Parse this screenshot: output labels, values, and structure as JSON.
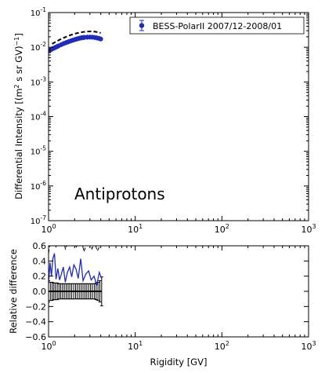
{
  "chart_data": [
    {
      "type": "scatter",
      "title": "",
      "annotation": "Antiprotons",
      "xlabel": "",
      "ylabel": "Differential Intensity [(m² s sr GV)⁻¹]",
      "ylabel_main": "Differential Intensity [(m",
      "ylabel_sup1": "2",
      "ylabel_mid": " s sr GV)",
      "ylabel_sup2": "−1",
      "ylabel_end": "]",
      "x_scale": "log",
      "y_scale": "log",
      "xlim": [
        1,
        1000
      ],
      "ylim": [
        1e-07,
        0.1
      ],
      "x_ticks": [
        {
          "value": 1,
          "base": "10",
          "exp": "0"
        },
        {
          "value": 10,
          "base": "10",
          "exp": "1"
        },
        {
          "value": 100,
          "base": "10",
          "exp": "2"
        },
        {
          "value": 1000,
          "base": "10",
          "exp": "3"
        }
      ],
      "y_ticks": [
        {
          "value": 1e-07,
          "base": "10",
          "exp": "-7"
        },
        {
          "value": 1e-06,
          "base": "10",
          "exp": "-6"
        },
        {
          "value": 1e-05,
          "base": "10",
          "exp": "-5"
        },
        {
          "value": 0.0001,
          "base": "10",
          "exp": "-4"
        },
        {
          "value": 0.001,
          "base": "10",
          "exp": "-3"
        },
        {
          "value": 0.01,
          "base": "10",
          "exp": "-2"
        },
        {
          "value": 0.1,
          "base": "10",
          "exp": "-1"
        }
      ],
      "legend_position": "top-right",
      "series": [
        {
          "name": "BESS-PolarII 2007/12-2008/01",
          "style": "points-with-errorbars",
          "color": "#1f2bbf",
          "x": [
            1.0,
            1.05,
            1.1,
            1.15,
            1.2,
            1.25,
            1.3,
            1.4,
            1.5,
            1.6,
            1.7,
            1.8,
            1.9,
            2.0,
            2.1,
            2.2,
            2.3,
            2.4,
            2.5,
            2.6,
            2.8,
            3.0,
            3.2,
            3.4,
            3.6,
            3.8,
            4.0
          ],
          "y": [
            0.0078,
            0.0083,
            0.0089,
            0.0094,
            0.0099,
            0.0104,
            0.0109,
            0.0119,
            0.0128,
            0.0136,
            0.0144,
            0.0152,
            0.0159,
            0.0166,
            0.0172,
            0.0178,
            0.0183,
            0.0187,
            0.019,
            0.0192,
            0.0195,
            0.0196,
            0.0195,
            0.0191,
            0.0186,
            0.018,
            0.0173
          ]
        },
        {
          "name": "",
          "style": "dashed-line",
          "color": "#000000",
          "x": [
            1.1,
            1.2,
            1.3,
            1.45,
            1.6,
            1.8,
            2.0,
            2.2,
            2.5,
            2.8,
            3.1,
            3.4,
            3.7,
            4.0
          ],
          "y": [
            0.0125,
            0.0142,
            0.0158,
            0.0181,
            0.0201,
            0.0225,
            0.0244,
            0.0259,
            0.0276,
            0.0284,
            0.0286,
            0.0282,
            0.0272,
            0.0258
          ]
        }
      ]
    },
    {
      "type": "line",
      "title": "",
      "xlabel": "Rigidity [GV]",
      "ylabel": "Relative difference",
      "x_scale": "log",
      "xlim": [
        1,
        1000
      ],
      "ylim": [
        -0.6,
        0.6
      ],
      "x_ticks": [
        {
          "value": 1,
          "base": "10",
          "exp": "0"
        },
        {
          "value": 10,
          "base": "10",
          "exp": "1"
        },
        {
          "value": 100,
          "base": "10",
          "exp": "2"
        },
        {
          "value": 1000,
          "base": "10",
          "exp": "3"
        }
      ],
      "y_ticks": [
        {
          "value": -0.6,
          "label": "−0.6"
        },
        {
          "value": -0.4,
          "label": "−0.4"
        },
        {
          "value": -0.2,
          "label": "−0.2"
        },
        {
          "value": 0.0,
          "label": "0.0"
        },
        {
          "value": 0.2,
          "label": "0.2"
        },
        {
          "value": 0.4,
          "label": "0.4"
        },
        {
          "value": 0.6,
          "label": "0.6"
        }
      ],
      "series": [
        {
          "name": "",
          "style": "solid-line",
          "color": "#1f2bbf",
          "x": [
            1.0,
            1.04,
            1.08,
            1.12,
            1.17,
            1.22,
            1.28,
            1.34,
            1.4,
            1.48,
            1.56,
            1.65,
            1.75,
            1.85,
            1.96,
            2.08,
            2.2,
            2.35,
            2.5,
            2.7,
            2.9,
            3.1,
            3.35,
            3.6,
            3.85,
            4.1
          ],
          "y": [
            0.1,
            0.38,
            0.2,
            0.43,
            0.5,
            0.16,
            0.3,
            0.15,
            0.22,
            0.32,
            0.12,
            0.25,
            0.32,
            0.19,
            0.35,
            0.29,
            0.17,
            0.43,
            0.14,
            0.23,
            0.27,
            0.15,
            0.2,
            0.08,
            0.25,
            0.17
          ]
        },
        {
          "name": "",
          "style": "dashed-line",
          "color": "#000000",
          "x": [
            1.0,
            1.05,
            1.1,
            1.16,
            1.22,
            1.3,
            1.38,
            1.47,
            1.57,
            1.68,
            1.8,
            1.93,
            2.07,
            2.22,
            2.38,
            2.56,
            2.75,
            2.95,
            3.17,
            3.4,
            3.65,
            3.9
          ],
          "y": [
            0.5,
            0.66,
            0.62,
            0.72,
            0.58,
            0.75,
            0.64,
            0.7,
            0.55,
            0.68,
            0.61,
            0.74,
            0.57,
            0.66,
            0.7,
            0.52,
            0.63,
            0.71,
            0.56,
            0.65,
            0.53,
            0.6
          ]
        },
        {
          "name": "",
          "style": "errorbars-at-zero",
          "color": "#000000",
          "x": [
            1.0,
            1.05,
            1.1,
            1.15,
            1.2,
            1.26,
            1.32,
            1.38,
            1.45,
            1.52,
            1.6,
            1.68,
            1.76,
            1.85,
            1.95,
            2.05,
            2.15,
            2.26,
            2.38,
            2.5,
            2.63,
            2.76,
            2.9,
            3.05,
            3.2,
            3.37,
            3.54,
            3.72,
            3.91,
            4.1
          ],
          "y": [
            0,
            0,
            0,
            0,
            0,
            0,
            0,
            0,
            0,
            0,
            0,
            0,
            0,
            0,
            0,
            0,
            0,
            0,
            0,
            0,
            0,
            0,
            0,
            0,
            0,
            0,
            0,
            0,
            0,
            0
          ],
          "err": [
            0.14,
            0.12,
            0.12,
            0.11,
            0.11,
            0.11,
            0.1,
            0.1,
            0.1,
            0.1,
            0.1,
            0.1,
            0.1,
            0.1,
            0.1,
            0.1,
            0.1,
            0.1,
            0.1,
            0.1,
            0.1,
            0.1,
            0.1,
            0.1,
            0.1,
            0.1,
            0.11,
            0.12,
            0.14,
            0.19
          ]
        }
      ]
    }
  ]
}
